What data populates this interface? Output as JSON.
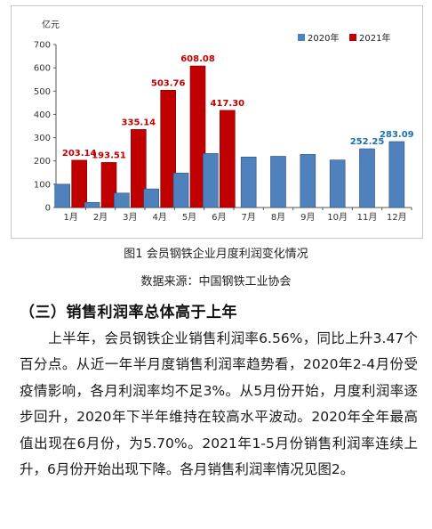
{
  "chart_data": {
    "type": "bar",
    "unit_label": "亿元",
    "categories": [
      "1月",
      "2月",
      "3月",
      "4月",
      "5月",
      "6月",
      "7月",
      "8月",
      "9月",
      "10月",
      "11月",
      "12月"
    ],
    "series": [
      {
        "name": "2020年",
        "color": "#4f81bd",
        "values": [
          100,
          22,
          62,
          80,
          148,
          232,
          217,
          220,
          228,
          204,
          252.25,
          283.09
        ]
      },
      {
        "name": "2021年",
        "color": "#c00000",
        "values": [
          203.14,
          193.51,
          335.14,
          503.76,
          608.08,
          417.3,
          null,
          null,
          null,
          null,
          null,
          null
        ]
      }
    ],
    "data_labels": {
      "2020年": [
        "",
        "",
        "",
        "",
        "",
        "",
        "",
        "",
        "",
        "",
        "252.25",
        "283.09"
      ],
      "2021年": [
        "203.14",
        "193.51",
        "335.14",
        "503.76",
        "608.08",
        "417.30",
        "",
        "",
        "",
        "",
        "",
        ""
      ]
    },
    "label_colors": {
      "2020年": "#1f6fb0",
      "2021年": "#c00000"
    },
    "y_ticks": [
      0,
      100,
      200,
      300,
      400,
      500,
      600,
      700
    ],
    "ylim": [
      0,
      700
    ],
    "legend_position": "top-right",
    "grid": false
  },
  "caption": {
    "figure_title": "图1 会员钢铁企业月度利润变化情况",
    "source": "数据来源：中国钢铁工业协会"
  },
  "section": {
    "heading": "（三）销售利润率总体高于上年",
    "paragraph": "上半年，会员钢铁企业销售利润率6.56%，同比上升3.47个百分点。从近一年半月度销售利润率趋势看，2020年2-4月份受疫情影响，各月利润率均不足3%。从5月份开始，月度利润率逐步回升，2020年下半年维持在较高水平波动。2020年全年最高值出现在6月份，为5.70%。2021年1-5月份销售利润率连续上升，6月份开始出现下降。各月销售利润率情况见图2。"
  }
}
